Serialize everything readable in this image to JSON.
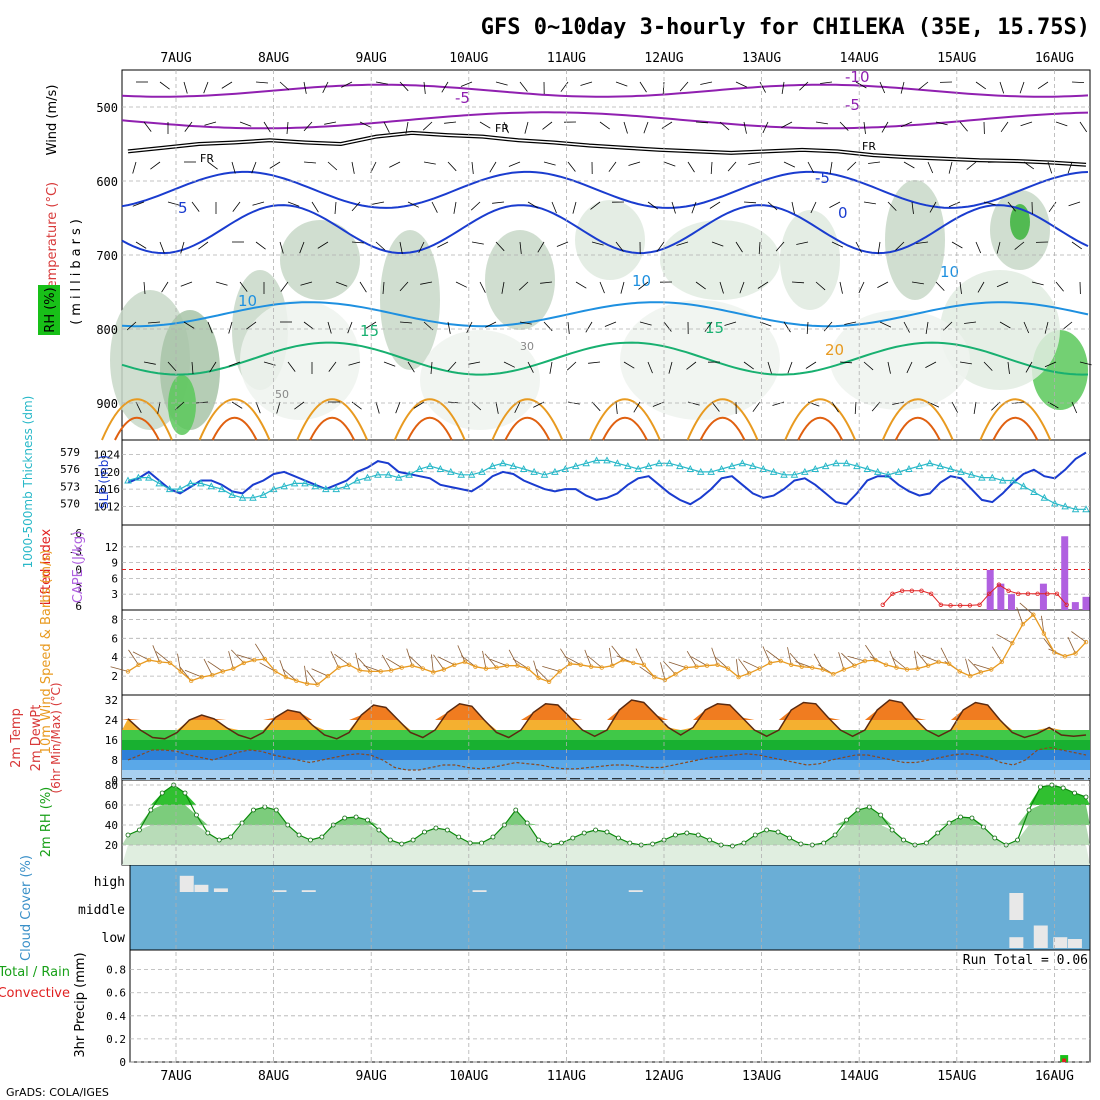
{
  "title": "GFS 0~10day 3-hourly for CHILEKA (35E, 15.75S)",
  "credit": "GrADS: COLA/IGES",
  "x_labels": [
    "7AUG",
    "8AUG",
    "9AUG",
    "10AUG",
    "11AUG",
    "12AUG",
    "13AUG",
    "14AUG",
    "15AUG",
    "16AUG"
  ],
  "colors": {
    "grid": "#b0b0b0",
    "cyan": "#28b8c8",
    "blue": "#1a3ccf",
    "orange": "#e89a20",
    "purple": "#b060e0",
    "red": "#e02020",
    "green": "#18c018",
    "cloud_bg": "#6aaed6",
    "cloud_bar": "#e8e8e8"
  },
  "chart_data": [
    {
      "id": "upper_air",
      "type": "heatmap",
      "panel_labels": {
        "wind": "Wind (m/s)",
        "temp": "Temperature (°C)",
        "rh": "RH (%)",
        "axis": "(millibars)"
      },
      "y_ticks": [
        500,
        600,
        700,
        800,
        900
      ],
      "ylim": [
        450,
        950
      ],
      "contour_labels": [
        "-10",
        "-5",
        "-5",
        "FR",
        "FR",
        "FR",
        "-5",
        "5",
        "0",
        "10",
        "10",
        "10",
        "15",
        "15",
        "20",
        "30",
        "50"
      ],
      "freezing_level_mb": [
        560,
        555,
        550,
        548,
        545,
        548,
        550,
        540,
        535,
        538,
        540,
        545,
        548,
        552,
        555,
        558,
        560,
        562,
        560,
        558,
        560,
        565,
        568,
        570,
        572,
        573,
        575,
        578
      ]
    },
    {
      "id": "thickness_slp",
      "type": "line",
      "labels": {
        "left": "1000-500mb Thickness (dm)",
        "right": "SLP (mb)"
      },
      "left_ticks": [
        570,
        573,
        576,
        579
      ],
      "right_ticks": [
        1012,
        1016,
        1020,
        1024
      ],
      "series": [
        {
          "name": "SLP",
          "axis": "right",
          "values": [
            1017.5,
            1018.5,
            1020,
            1018,
            1016,
            1015,
            1016.5,
            1018,
            1018,
            1017,
            1015.5,
            1015,
            1017,
            1018,
            1019.5,
            1020,
            1019,
            1018,
            1017,
            1016,
            1017,
            1018,
            1020,
            1021,
            1022.5,
            1022,
            1020,
            1019.5,
            1019,
            1018.5,
            1017,
            1016.5,
            1016,
            1015.5,
            1017,
            1019,
            1020,
            1019.5,
            1018,
            1017,
            1016,
            1015.5,
            1016,
            1016,
            1014.5,
            1013.5,
            1014,
            1015,
            1017,
            1018.5,
            1019,
            1017,
            1015,
            1013.5,
            1012.5,
            1014,
            1016,
            1018.5,
            1019,
            1017,
            1015,
            1014,
            1014.5,
            1016,
            1018,
            1018.5,
            1017,
            1015,
            1013,
            1012.5,
            1015,
            1018,
            1019,
            1019,
            1017,
            1015.5,
            1014.5,
            1015,
            1017.5,
            1019,
            1018.5,
            1016,
            1013.5,
            1013,
            1015,
            1017.5,
            1019.5,
            1020.5,
            1019,
            1018.5,
            1020.5,
            1023,
            1024.5
          ]
        },
        {
          "name": "Thickness",
          "axis": "left",
          "values": [
            574,
            574.5,
            574.5,
            573.5,
            572.5,
            572.5,
            573.5,
            573.5,
            573,
            572.5,
            571.5,
            571,
            571,
            571.5,
            572.5,
            573,
            573.5,
            573.5,
            573,
            572.5,
            572.5,
            573,
            574,
            574.5,
            575,
            575,
            574.5,
            575,
            576,
            576.5,
            576,
            575.5,
            575,
            575,
            575.5,
            576.5,
            577,
            576.5,
            576,
            575.5,
            575,
            575.5,
            576,
            576.5,
            577,
            577.5,
            577.5,
            577,
            576.5,
            576,
            576.5,
            577,
            577,
            576.5,
            576,
            575.5,
            575.5,
            576,
            576.5,
            577,
            576.5,
            576,
            575.5,
            575,
            575,
            575.5,
            576,
            576.5,
            577,
            577,
            576.5,
            576,
            575.5,
            575,
            575.5,
            576,
            576.5,
            577,
            576.5,
            576,
            575.5,
            575,
            574.5,
            574.5,
            574,
            574,
            573,
            572,
            571,
            570,
            569.5,
            569,
            569
          ]
        }
      ]
    },
    {
      "id": "cape_li",
      "type": "bar",
      "labels": {
        "left": "Lifted Index",
        "right": "CAPE (J/kg)"
      },
      "left_ticks": [
        "-6",
        "-3",
        "0",
        "3",
        "6"
      ],
      "right_ticks": [
        3,
        6,
        9,
        12
      ],
      "cape_values": [
        0,
        0,
        0,
        0,
        0,
        0,
        0,
        0,
        0,
        0,
        0,
        0,
        0,
        0,
        0,
        0,
        0,
        0,
        0,
        0,
        0,
        0,
        0,
        0,
        0,
        0,
        0,
        0,
        0,
        0,
        0,
        0,
        0,
        0,
        0,
        0,
        0,
        0,
        0,
        0,
        0,
        0,
        0,
        0,
        0,
        0,
        0,
        0,
        0,
        0,
        0,
        0,
        0,
        0,
        0,
        0,
        0,
        0,
        0,
        0,
        0,
        0,
        0,
        0,
        0,
        0,
        0,
        0,
        0,
        0,
        0,
        0,
        0,
        0,
        0,
        0,
        0,
        0,
        0,
        0,
        0,
        7.6,
        5,
        3,
        0,
        0,
        5,
        0,
        14,
        1.5,
        2.5
      ],
      "lifted_index": [
        null,
        null,
        null,
        null,
        null,
        null,
        null,
        null,
        null,
        null,
        null,
        null,
        null,
        null,
        null,
        null,
        null,
        null,
        null,
        null,
        null,
        null,
        null,
        null,
        null,
        null,
        null,
        null,
        null,
        null,
        null,
        null,
        null,
        null,
        null,
        null,
        null,
        null,
        null,
        null,
        null,
        null,
        null,
        null,
        null,
        null,
        null,
        null,
        null,
        null,
        null,
        null,
        null,
        null,
        null,
        null,
        null,
        null,
        null,
        null,
        null,
        null,
        null,
        null,
        null,
        null,
        null,
        null,
        null,
        null,
        null,
        null,
        null,
        null,
        null,
        null,
        null,
        null,
        5.8,
        4,
        3.5,
        3.5,
        3.5,
        4,
        5.8,
        5.9,
        5.9,
        5.9,
        5.8,
        4,
        2.5,
        3.5,
        4,
        4,
        4,
        4,
        4,
        5.8,
        null,
        null
      ]
    },
    {
      "id": "wind10m",
      "type": "line",
      "labels": {
        "main": "10m Wind Speed & Barbs (m/s)"
      },
      "y_ticks": [
        2,
        4,
        6,
        8
      ],
      "ylim": [
        0,
        9
      ],
      "series": [
        {
          "name": "10m Wind Speed",
          "values": [
            2.5,
            3.2,
            3.7,
            3.5,
            3.4,
            2.5,
            1.5,
            1.9,
            2.1,
            2.5,
            2.8,
            3.4,
            3.7,
            3.8,
            2.5,
            1.9,
            1.5,
            1.2,
            1.1,
            2.0,
            2.9,
            3.2,
            2.6,
            2.5,
            2.5,
            2.6,
            2.9,
            3.1,
            2.8,
            2.4,
            2.7,
            3.2,
            3.5,
            3.0,
            2.8,
            2.9,
            3.1,
            3.1,
            2.8,
            1.8,
            1.4,
            2.5,
            3.3,
            3.2,
            3.0,
            2.9,
            3.1,
            3.7,
            3.4,
            3.2,
            1.9,
            1.6,
            2.2,
            2.9,
            3.0,
            3.1,
            3.2,
            2.8,
            1.9,
            2.3,
            2.8,
            3.4,
            3.6,
            3.2,
            3.0,
            2.9,
            2.7,
            2.2,
            2.7,
            3.1,
            3.6,
            3.7,
            3.2,
            2.9,
            2.7,
            2.8,
            3.1,
            3.5,
            3.3,
            2.5,
            2.0,
            2.4,
            2.7,
            3.5,
            5.5,
            7.5,
            8.5,
            6.5,
            4.5,
            4.1,
            4.4,
            5.6
          ]
        }
      ]
    },
    {
      "id": "temp2m",
      "type": "area",
      "labels": {
        "main": "2m Temp",
        "sub1": "2m DewPt",
        "sub2": "(6hr Min/Max) (°C)"
      },
      "y_ticks": [
        0,
        8,
        16,
        24,
        32
      ],
      "ylim": [
        0,
        34
      ],
      "series": [
        {
          "name": "2m Temp",
          "values": [
            24.5,
            20,
            17,
            16.5,
            19,
            24,
            26,
            24.5,
            21,
            18,
            16.5,
            19,
            25,
            28,
            27,
            22,
            18,
            16.5,
            19,
            26,
            30,
            29,
            24,
            19,
            17,
            20,
            27,
            30.5,
            29.5,
            24,
            19,
            17,
            20,
            27,
            30.5,
            30,
            25,
            20,
            17.5,
            20,
            28,
            32,
            31,
            26,
            21,
            18,
            21,
            28,
            30.5,
            30,
            25,
            20,
            17.5,
            20,
            28,
            31,
            30.5,
            25,
            20,
            17.5,
            20,
            28,
            32,
            31,
            25,
            20,
            17.5,
            20,
            28,
            31,
            30,
            24,
            19,
            17,
            18.5,
            21,
            18,
            17.5,
            18
          ]
        },
        {
          "name": "2m DewPt",
          "values": [
            8,
            10,
            12,
            12,
            11.5,
            10,
            9,
            8,
            9.5,
            11,
            12,
            11.5,
            10,
            9,
            8,
            7,
            8,
            9,
            10,
            10.5,
            10,
            8,
            5,
            4,
            4,
            5,
            6,
            6,
            5,
            4.5,
            5,
            6,
            7,
            6.5,
            6,
            5,
            4.5,
            4.5,
            5,
            5.5,
            6,
            6,
            5.5,
            5,
            5,
            6,
            7,
            8,
            9,
            9.5,
            10,
            10.5,
            10,
            9,
            8,
            7,
            6,
            6.5,
            8,
            9,
            10,
            10,
            9,
            8,
            7,
            7,
            8,
            9,
            10,
            10.5,
            10,
            9,
            7,
            6,
            8,
            12,
            13,
            12,
            11,
            10
          ]
        }
      ]
    },
    {
      "id": "rh2m",
      "type": "area",
      "labels": {
        "main": "2m RH (%)"
      },
      "y_ticks": [
        20,
        40,
        60,
        80
      ],
      "ylim": [
        0,
        85
      ],
      "series": [
        {
          "name": "2m RH",
          "values": [
            30,
            35,
            55,
            72,
            80,
            72,
            50,
            32,
            25,
            28,
            42,
            55,
            58,
            55,
            40,
            30,
            25,
            28,
            40,
            47,
            48,
            45,
            35,
            25,
            21,
            25,
            33,
            37,
            35,
            28,
            22,
            22,
            28,
            40,
            55,
            42,
            25,
            20,
            22,
            27,
            32,
            35,
            33,
            27,
            22,
            20,
            21,
            25,
            30,
            32,
            30,
            25,
            20,
            19,
            22,
            30,
            35,
            33,
            27,
            21,
            20,
            22,
            30,
            45,
            55,
            58,
            50,
            35,
            25,
            20,
            22,
            32,
            42,
            48,
            47,
            38,
            27,
            20,
            25,
            55,
            78,
            80,
            77,
            72,
            68
          ]
        }
      ]
    },
    {
      "id": "cloud",
      "type": "bar",
      "labels": {
        "main": "Cloud Cover (%)"
      },
      "levels": [
        "high",
        "middle",
        "low"
      ],
      "high": [
        [
          7.1,
          18
        ],
        [
          7.25,
          8
        ],
        [
          7.45,
          4
        ],
        [
          8.05,
          2
        ],
        [
          8.35,
          2
        ],
        [
          10.1,
          2
        ],
        [
          11.7,
          2
        ]
      ],
      "middle": [
        [
          15.6,
          30
        ]
      ],
      "low": [
        [
          15.6,
          12
        ],
        [
          15.85,
          25
        ],
        [
          16.05,
          12
        ],
        [
          16.2,
          10
        ]
      ]
    },
    {
      "id": "precip",
      "type": "bar",
      "labels": {
        "main": "3hr Precip (mm)",
        "total": "Total / Rain",
        "conv": "Convective",
        "run_total": "Run Total = 0.06"
      },
      "y_ticks": [
        0,
        0.2,
        0.4,
        0.6,
        0.8
      ],
      "ylim": [
        0,
        0.97
      ],
      "values": [
        [
          16.1,
          0.06
        ]
      ],
      "convective": [
        [
          16.1,
          0.03
        ]
      ]
    }
  ]
}
